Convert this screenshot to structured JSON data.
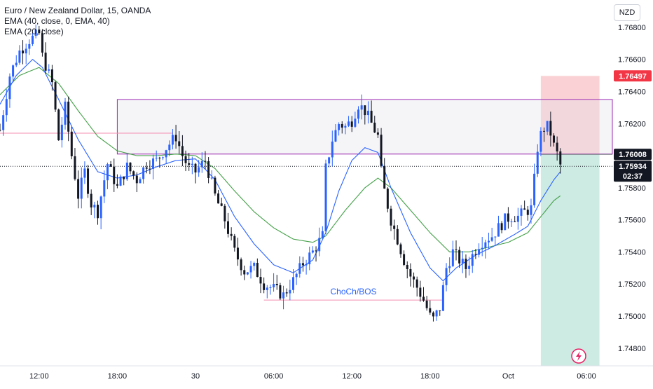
{
  "header": {
    "symbol_line": "Euro / New Zealand Dollar, 15, OANDA",
    "indicators": [
      "EMA (40, close, 0, EMA, 40)",
      "EMA (20, close)"
    ],
    "currency_button": "NZD"
  },
  "chart_data": {
    "type": "candlestick",
    "symbol": "EUR/NZD",
    "timeframe": "15",
    "broker": "OANDA",
    "ylim": [
      1.7469,
      1.7697
    ],
    "y_ticks": [
      "1.74800",
      "1.75000",
      "1.75200",
      "1.75400",
      "1.75600",
      "1.75800",
      "1.76000",
      "1.76200",
      "1.76400",
      "1.76600",
      "1.76800"
    ],
    "x_ticks": [
      {
        "label": "12:00",
        "bar": 12
      },
      {
        "label": "18:00",
        "bar": 36
      },
      {
        "label": "30",
        "bar": 60
      },
      {
        "label": "06:00",
        "bar": 84
      },
      {
        "label": "12:00",
        "bar": 108
      },
      {
        "label": "18:00",
        "bar": 132
      },
      {
        "label": "Oct",
        "bar": 156
      },
      {
        "label": "06:00",
        "bar": 180
      }
    ],
    "bar_count": 200,
    "close_anchors": [
      [
        0,
        1.7616
      ],
      [
        3,
        1.765
      ],
      [
        6,
        1.7665
      ],
      [
        9,
        1.7672
      ],
      [
        12,
        1.7676
      ],
      [
        13,
        1.7662
      ],
      [
        16,
        1.7645
      ],
      [
        18,
        1.761
      ],
      [
        20,
        1.763
      ],
      [
        22,
        1.76
      ],
      [
        24,
        1.7575
      ],
      [
        26,
        1.759
      ],
      [
        28,
        1.757
      ],
      [
        30,
        1.7565
      ],
      [
        33,
        1.7595
      ],
      [
        36,
        1.758
      ],
      [
        39,
        1.7593
      ],
      [
        42,
        1.7585
      ],
      [
        45,
        1.7595
      ],
      [
        48,
        1.7597
      ],
      [
        51,
        1.7605
      ],
      [
        54,
        1.7612
      ],
      [
        56,
        1.76
      ],
      [
        58,
        1.7592
      ],
      [
        60,
        1.759
      ],
      [
        63,
        1.7597
      ],
      [
        66,
        1.7575
      ],
      [
        69,
        1.756
      ],
      [
        72,
        1.754
      ],
      [
        75,
        1.7528
      ],
      [
        78,
        1.753
      ],
      [
        81,
        1.752
      ],
      [
        84,
        1.7517
      ],
      [
        87,
        1.7513
      ],
      [
        90,
        1.7522
      ],
      [
        93,
        1.7533
      ],
      [
        96,
        1.754
      ],
      [
        99,
        1.755
      ],
      [
        100,
        1.7592
      ],
      [
        102,
        1.761
      ],
      [
        104,
        1.762
      ],
      [
        106,
        1.7618
      ],
      [
        108,
        1.7622
      ],
      [
        110,
        1.7632
      ],
      [
        112,
        1.7628
      ],
      [
        114,
        1.762
      ],
      [
        116,
        1.7612
      ],
      [
        117,
        1.759
      ],
      [
        118,
        1.7578
      ],
      [
        120,
        1.756
      ],
      [
        122,
        1.7548
      ],
      [
        124,
        1.7535
      ],
      [
        126,
        1.7525
      ],
      [
        128,
        1.7518
      ],
      [
        130,
        1.751
      ],
      [
        132,
        1.75
      ],
      [
        133,
        1.7498
      ],
      [
        135,
        1.7505
      ],
      [
        137,
        1.753
      ],
      [
        139,
        1.754
      ],
      [
        141,
        1.7535
      ],
      [
        143,
        1.753
      ],
      [
        145,
        1.7538
      ],
      [
        147,
        1.7545
      ],
      [
        149,
        1.7548
      ],
      [
        151,
        1.755
      ],
      [
        153,
        1.7555
      ],
      [
        155,
        1.756
      ],
      [
        157,
        1.7562
      ],
      [
        159,
        1.7562
      ],
      [
        161,
        1.7565
      ],
      [
        163,
        1.7567
      ],
      [
        164,
        1.7585
      ],
      [
        165,
        1.7605
      ],
      [
        166,
        1.7613
      ],
      [
        167,
        1.7617
      ],
      [
        168,
        1.7618
      ],
      [
        169,
        1.7614
      ],
      [
        170,
        1.7606
      ],
      [
        171,
        1.7601
      ],
      [
        172,
        1.7594
      ]
    ],
    "ema20_anchors": [
      [
        0,
        1.7632
      ],
      [
        5,
        1.765
      ],
      [
        10,
        1.766
      ],
      [
        13,
        1.7655
      ],
      [
        18,
        1.7635
      ],
      [
        24,
        1.761
      ],
      [
        30,
        1.759
      ],
      [
        36,
        1.7586
      ],
      [
        42,
        1.7588
      ],
      [
        48,
        1.7593
      ],
      [
        54,
        1.7597
      ],
      [
        60,
        1.7598
      ],
      [
        66,
        1.7585
      ],
      [
        72,
        1.7562
      ],
      [
        78,
        1.7545
      ],
      [
        84,
        1.7532
      ],
      [
        90,
        1.7527
      ],
      [
        96,
        1.7535
      ],
      [
        100,
        1.7552
      ],
      [
        104,
        1.7578
      ],
      [
        108,
        1.7597
      ],
      [
        112,
        1.7605
      ],
      [
        116,
        1.7602
      ],
      [
        120,
        1.758
      ],
      [
        126,
        1.7552
      ],
      [
        132,
        1.753
      ],
      [
        136,
        1.7522
      ],
      [
        140,
        1.753
      ],
      [
        146,
        1.7538
      ],
      [
        152,
        1.7544
      ],
      [
        158,
        1.7551
      ],
      [
        162,
        1.7556
      ],
      [
        166,
        1.7572
      ],
      [
        170,
        1.7585
      ],
      [
        172,
        1.759
      ]
    ],
    "ema40_anchors": [
      [
        0,
        1.7638
      ],
      [
        6,
        1.765
      ],
      [
        12,
        1.7655
      ],
      [
        18,
        1.7645
      ],
      [
        24,
        1.7628
      ],
      [
        30,
        1.7612
      ],
      [
        36,
        1.7603
      ],
      [
        42,
        1.76
      ],
      [
        48,
        1.76
      ],
      [
        54,
        1.7601
      ],
      [
        60,
        1.76
      ],
      [
        66,
        1.7592
      ],
      [
        72,
        1.7578
      ],
      [
        78,
        1.7565
      ],
      [
        84,
        1.7555
      ],
      [
        90,
        1.7548
      ],
      [
        96,
        1.7546
      ],
      [
        100,
        1.755
      ],
      [
        106,
        1.7566
      ],
      [
        112,
        1.758
      ],
      [
        116,
        1.7586
      ],
      [
        120,
        1.758
      ],
      [
        126,
        1.7566
      ],
      [
        132,
        1.7552
      ],
      [
        138,
        1.754
      ],
      [
        144,
        1.754
      ],
      [
        150,
        1.7543
      ],
      [
        156,
        1.7546
      ],
      [
        162,
        1.7552
      ],
      [
        166,
        1.7562
      ],
      [
        170,
        1.7572
      ],
      [
        172,
        1.7575
      ]
    ],
    "zone": {
      "bar_start": 36,
      "bar_end": 200,
      "top": 1.7635,
      "bottom": 1.7601
    },
    "choch_line": {
      "bar_start": 81,
      "bar_end": 136,
      "price": 1.751,
      "label": "ChoCh/BOS"
    },
    "resistance_line": {
      "bar_start": 0,
      "bar_end": 53,
      "price": 1.7614
    },
    "position": {
      "bar_start": 166,
      "bar_end": 184,
      "stop": 1.76497,
      "entry": 1.76008,
      "target": 1.7469
    },
    "last_price": 1.75934,
    "price_tags": [
      {
        "price": 1.76497,
        "text": "1.76497",
        "color": "#f23645"
      },
      {
        "price": 1.76008,
        "text": "1.76008",
        "color": "#131722"
      },
      {
        "price": 1.75934,
        "text": "1.75934",
        "sub": "02:37",
        "color": "#131722"
      }
    ],
    "colors": {
      "up": "#2962ff",
      "down": "#131722",
      "ema20": "#2962ff",
      "ema40": "#43a047",
      "zone": "#9c27b0",
      "stop_fill": "#f9c7cb",
      "target_fill": "#c5e8de",
      "choch": "#f48fb1",
      "choch_text": "#2962ff"
    }
  }
}
